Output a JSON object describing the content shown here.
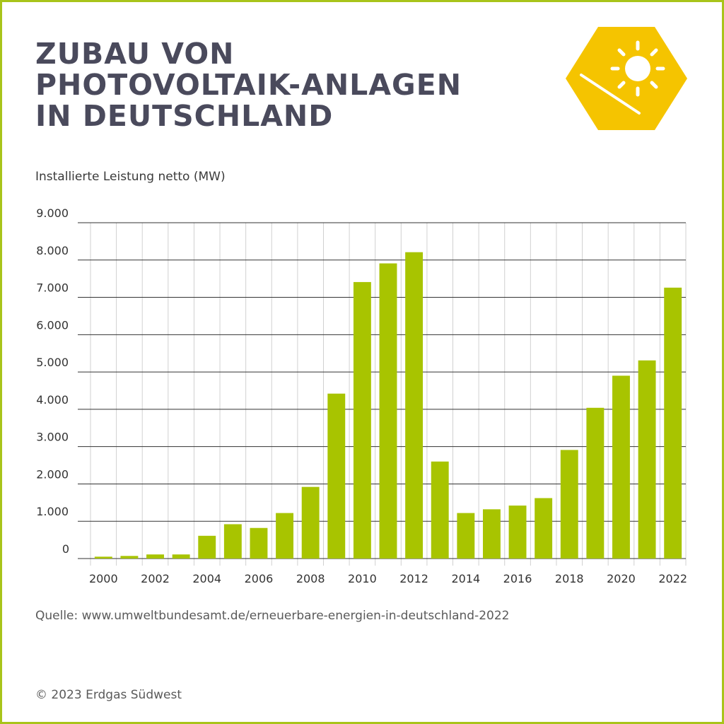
{
  "title_lines": [
    "ZUBAU VON",
    "PHOTOVOLTAIK-ANLAGEN",
    "IN DEUTSCHLAND"
  ],
  "icon": "sun-solar-panel-icon",
  "source": "Quelle: www.umweltbundesamt.de/erneuerbare-energien-in-deutschland-2022",
  "copyright": "© 2023 Erdgas Südwest",
  "colors": {
    "bar": "#a8c400",
    "frame": "#a8c41a",
    "title": "#4a4a5c",
    "badge": "#f5c400"
  },
  "chart_data": {
    "type": "bar",
    "ylabel": "Installierte Leistung netto (MW)",
    "ylim": [
      0,
      9000
    ],
    "yticks": [
      "0",
      "1.000",
      "2.000",
      "3.000",
      "4.000",
      "5.000",
      "6.000",
      "7.000",
      "8.000",
      "9.000"
    ],
    "ytick_values": [
      0,
      1000,
      2000,
      3000,
      4000,
      5000,
      6000,
      7000,
      8000,
      9000
    ],
    "categories": [
      "2000",
      "2001",
      "2002",
      "2003",
      "2004",
      "2005",
      "2006",
      "2007",
      "2008",
      "2009",
      "2010",
      "2011",
      "2012",
      "2013",
      "2014",
      "2015",
      "2016",
      "2017",
      "2018",
      "2019",
      "2020",
      "2021",
      "2022"
    ],
    "xtick_labels": [
      "2000",
      "",
      "2002",
      "",
      "2004",
      "",
      "2006",
      "",
      "2008",
      "",
      "2010",
      "",
      "2012",
      "",
      "2014",
      "",
      "2016",
      "",
      "2018",
      "",
      "2020",
      "",
      "2022"
    ],
    "values": [
      50,
      70,
      110,
      110,
      610,
      920,
      820,
      1220,
      1920,
      4420,
      7410,
      7910,
      8210,
      2600,
      1220,
      1320,
      1420,
      1620,
      2910,
      4040,
      4900,
      5310,
      7260
    ],
    "grid": "horizontal and vertical",
    "legend": "none"
  }
}
